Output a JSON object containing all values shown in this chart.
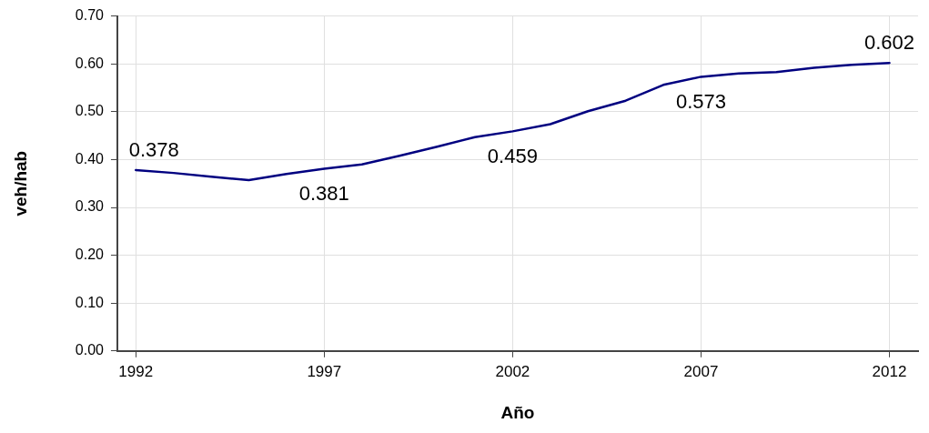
{
  "chart_data": {
    "type": "line",
    "xlabel": "Año",
    "ylabel": "veh/hab",
    "x": [
      1992,
      1993,
      1994,
      1995,
      1996,
      1997,
      1998,
      1999,
      2000,
      2001,
      2002,
      2003,
      2004,
      2005,
      2006,
      2007,
      2008,
      2009,
      2010,
      2011,
      2012
    ],
    "series": [
      {
        "color": "#000080",
        "values": [
          0.378,
          0.372,
          0.364,
          0.357,
          0.37,
          0.381,
          0.39,
          0.408,
          0.427,
          0.447,
          0.459,
          0.474,
          0.501,
          0.523,
          0.556,
          0.573,
          0.58,
          0.583,
          0.592,
          0.598,
          0.602
        ],
        "value_labels": [
          "0.378",
          null,
          null,
          null,
          null,
          "0.381",
          null,
          null,
          null,
          null,
          "0.459",
          null,
          null,
          null,
          null,
          "0.573",
          null,
          null,
          null,
          null,
          "0.602"
        ]
      }
    ],
    "xlim": [
      1991.51,
      2012.76
    ],
    "xticks": [
      1992,
      1997,
      2002,
      2007,
      2012
    ],
    "ylim": [
      0,
      0.7
    ],
    "yticks": [
      {
        "value": 0,
        "label": "0.00"
      },
      {
        "value": 0.1,
        "label": "0.10"
      },
      {
        "value": 0.2,
        "label": "0.20"
      },
      {
        "value": 0.3,
        "label": "0.30"
      },
      {
        "value": 0.4,
        "label": "0.40"
      },
      {
        "value": 0.5,
        "label": "0.50"
      },
      {
        "value": 0.6,
        "label": "0.60"
      },
      {
        "value": 0.7,
        "label": "0.70"
      }
    ],
    "grid": true,
    "legend": false,
    "marker": "none",
    "line_style": "solid"
  }
}
